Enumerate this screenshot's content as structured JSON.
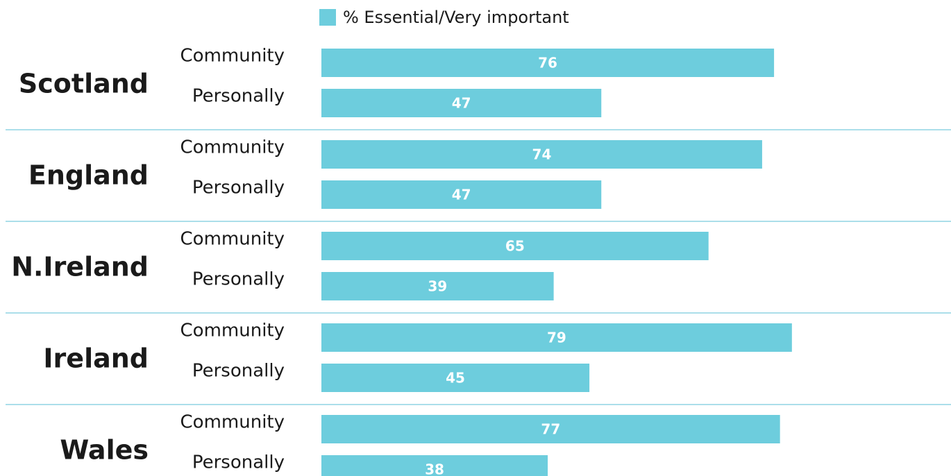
{
  "legend": {
    "label": "% Essential/Very important",
    "color": "#6dcddd"
  },
  "chart_data": {
    "type": "bar",
    "orientation": "horizontal",
    "legend": "% Essential/Very important",
    "xlim": [
      0,
      100
    ],
    "grid": false,
    "groups": [
      {
        "name": "Scotland",
        "bars": [
          {
            "label": "Community",
            "value": 76
          },
          {
            "label": "Personally",
            "value": 47
          }
        ]
      },
      {
        "name": "England",
        "bars": [
          {
            "label": "Community",
            "value": 74
          },
          {
            "label": "Personally",
            "value": 47
          }
        ]
      },
      {
        "name": "N.Ireland",
        "bars": [
          {
            "label": "Community",
            "value": 65
          },
          {
            "label": "Personally",
            "value": 39
          }
        ]
      },
      {
        "name": "Ireland",
        "bars": [
          {
            "label": "Community",
            "value": 79
          },
          {
            "label": "Personally",
            "value": 45
          }
        ]
      },
      {
        "name": "Wales",
        "bars": [
          {
            "label": "Community",
            "value": 77
          },
          {
            "label": "Personally",
            "value": 38
          }
        ]
      }
    ],
    "colors": {
      "bar": "#6dcddd",
      "divider": "#8fd3e3",
      "value_label": "#ffffff",
      "text": "#1a1a1a"
    }
  }
}
